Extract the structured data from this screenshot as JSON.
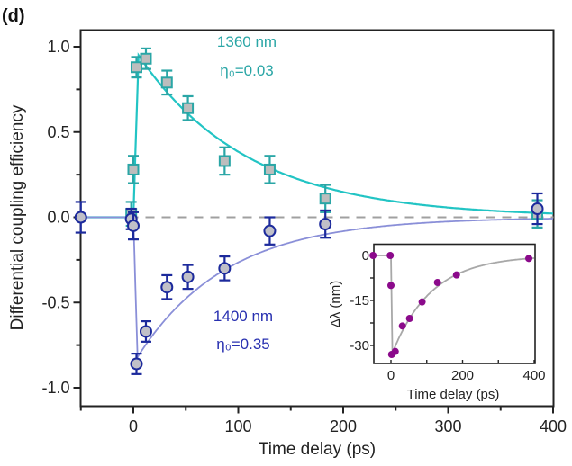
{
  "panel_label": "(d)",
  "chart_data": [
    {
      "type": "scatter",
      "title": "",
      "xlabel": "Time delay (ps)",
      "ylabel": "Differential coupling efficiency",
      "xlim": [
        -50,
        400
      ],
      "ylim": [
        -1.1,
        1.1
      ],
      "xticks": [
        0,
        100,
        200,
        300,
        400
      ],
      "xtick_labels": [
        "0",
        "100",
        "200",
        "300",
        "400"
      ],
      "yticks": [
        -1.0,
        -0.5,
        0.0,
        0.5,
        1.0
      ],
      "ytick_labels": [
        "-1.0",
        "-0.5",
        "0.0",
        "0.5",
        "1.0"
      ],
      "grid": false,
      "reference_line": {
        "y": 0.0,
        "style": "dashed",
        "color": "#a0a0a0"
      },
      "annotations": [
        {
          "text": "1360 nm",
          "series": "1360 nm"
        },
        {
          "text": "η₀=0.03",
          "series": "1360 nm"
        },
        {
          "text": "1400 nm",
          "series": "1400 nm"
        },
        {
          "text": "η₀=0.35",
          "series": "1400 nm"
        }
      ],
      "series": [
        {
          "name": "1360 nm",
          "eta0": 0.03,
          "marker": "square",
          "color": "#2aa6a6",
          "fit_color": "#22c4c4",
          "x": [
            -2,
            0,
            3,
            12,
            32,
            52,
            87,
            130,
            183,
            385
          ],
          "y": [
            0.02,
            0.28,
            0.88,
            0.93,
            0.79,
            0.64,
            0.33,
            0.28,
            0.11,
            0.02
          ],
          "error": [
            0.07,
            0.08,
            0.06,
            0.06,
            0.07,
            0.07,
            0.08,
            0.08,
            0.08,
            0.08
          ],
          "fit": {
            "model": "step-rise then exponential decay",
            "peak": 0.95,
            "t_peak": 5,
            "tau": 105
          }
        },
        {
          "name": "1400 nm",
          "eta0": 0.35,
          "marker": "circle",
          "color": "#1c2a9c",
          "fit_color": "#8a8fd8",
          "x": [
            -50,
            -2,
            0,
            3,
            12,
            32,
            52,
            87,
            130,
            183,
            385
          ],
          "y": [
            0.0,
            -0.01,
            -0.05,
            -0.86,
            -0.67,
            -0.41,
            -0.35,
            -0.3,
            -0.08,
            -0.04,
            0.05
          ],
          "error": [
            0.09,
            0.06,
            0.08,
            0.06,
            0.06,
            0.07,
            0.07,
            0.07,
            0.08,
            0.08,
            0.09
          ],
          "fit": {
            "model": "step-drop then exponential recovery",
            "min": -0.82,
            "t_min": 4,
            "tau": 85
          }
        }
      ]
    },
    {
      "type": "scatter",
      "role": "inset",
      "title": "",
      "xlabel": "Time delay (ps)",
      "ylabel": "Δλ (nm)",
      "xlim": [
        -50,
        400
      ],
      "ylim": [
        -36,
        4
      ],
      "xticks": [
        0,
        200,
        400
      ],
      "xtick_labels": [
        "0",
        "200",
        "400"
      ],
      "yticks": [
        0,
        -15,
        -30
      ],
      "ytick_labels": [
        "0",
        "-15",
        "-30"
      ],
      "grid": false,
      "series": [
        {
          "name": "Δλ",
          "marker": "circle",
          "color": "#8b0a8b",
          "line_color": "#a8a8a8",
          "x": [
            -50,
            -2,
            0,
            2,
            12,
            32,
            52,
            87,
            130,
            183,
            385
          ],
          "y": [
            0,
            0,
            -10,
            -33,
            -32,
            -23.5,
            -21,
            -15.5,
            -9,
            -6.5,
            -1
          ],
          "fit": {
            "model": "step-drop then exponential recovery",
            "min": -32.5,
            "t_min": 4,
            "tau": 110
          }
        }
      ]
    }
  ]
}
